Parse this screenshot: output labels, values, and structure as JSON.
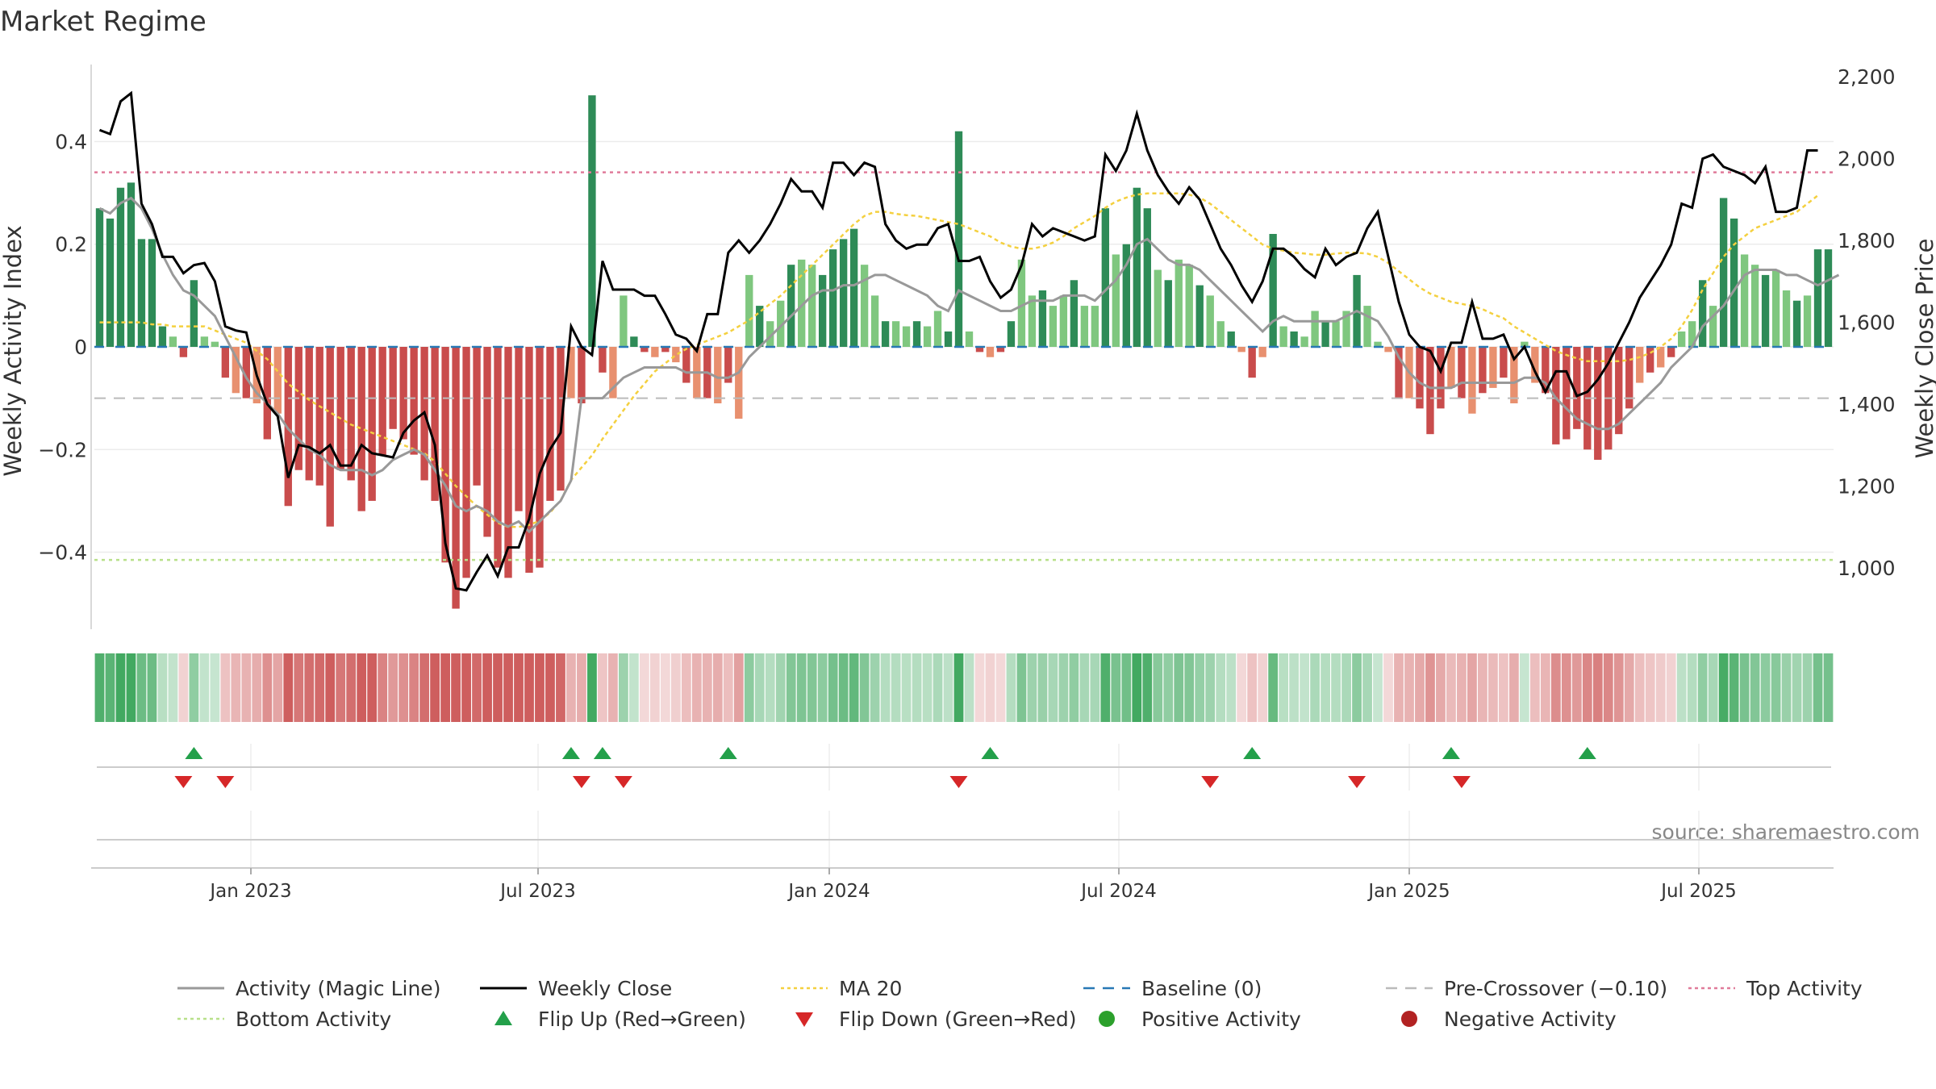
{
  "chart_data": {
    "type": "bar",
    "title": "Market Regime",
    "ylabel_left": "Weekly Activity Index",
    "ylabel_right": "Weekly Close Price",
    "source": "source: sharemaestro.com",
    "x_ticks": [
      "Jan 2023",
      "Jul 2023",
      "Jan 2024",
      "Jul 2024",
      "Jan 2025",
      "Jul 2025"
    ],
    "y_left_ticks": [
      "0.4",
      "0.2",
      "0",
      "−0.2",
      "−0.4"
    ],
    "y_right_ticks": [
      "2,200",
      "2,000",
      "1,800",
      "1,600",
      "1,400",
      "1,200",
      "1,000"
    ],
    "ylim_left": [
      -0.55,
      0.55
    ],
    "ylim_right": [
      850,
      2230
    ],
    "reference_lines": {
      "top_activity": 0.34,
      "bottom_activity": -0.415,
      "pre_crossover": -0.1,
      "baseline": 0
    },
    "activity_bars": [
      0.27,
      0.25,
      0.31,
      0.32,
      0.21,
      0.21,
      0.04,
      0.02,
      -0.02,
      0.13,
      0.02,
      0.01,
      -0.06,
      -0.09,
      -0.1,
      -0.11,
      -0.18,
      -0.13,
      -0.31,
      -0.24,
      -0.26,
      -0.27,
      -0.35,
      -0.24,
      -0.26,
      -0.32,
      -0.3,
      -0.21,
      -0.16,
      -0.18,
      -0.21,
      -0.26,
      -0.3,
      -0.42,
      -0.51,
      -0.45,
      -0.27,
      -0.37,
      -0.43,
      -0.45,
      -0.32,
      -0.44,
      -0.43,
      -0.3,
      -0.28,
      -0.1,
      -0.11,
      0.49,
      -0.05,
      -0.1,
      0.1,
      0.02,
      -0.01,
      -0.02,
      -0.01,
      -0.03,
      -0.07,
      -0.1,
      -0.1,
      -0.11,
      -0.07,
      -0.14,
      0.14,
      0.08,
      0.05,
      0.09,
      0.16,
      0.17,
      0.16,
      0.14,
      0.19,
      0.21,
      0.23,
      0.16,
      0.1,
      0.05,
      0.05,
      0.04,
      0.05,
      0.04,
      0.07,
      0.03,
      0.42,
      0.03,
      -0.01,
      -0.02,
      -0.01,
      0.05,
      0.17,
      0.1,
      0.11,
      0.08,
      0.1,
      0.13,
      0.08,
      0.08,
      0.27,
      0.18,
      0.2,
      0.31,
      0.27,
      0.15,
      0.13,
      0.17,
      0.16,
      0.12,
      0.1,
      0.05,
      0.03,
      -0.01,
      -0.06,
      -0.02,
      0.22,
      0.04,
      0.03,
      0.02,
      0.07,
      0.05,
      0.05,
      0.07,
      0.14,
      0.08,
      0.01,
      -0.01,
      -0.1,
      -0.1,
      -0.12,
      -0.17,
      -0.12,
      -0.08,
      -0.1,
      -0.13,
      -0.09,
      -0.08,
      -0.06,
      -0.11,
      0.01,
      -0.07,
      -0.09,
      -0.19,
      -0.18,
      -0.16,
      -0.2,
      -0.22,
      -0.2,
      -0.17,
      -0.12,
      -0.07,
      -0.05,
      -0.04,
      -0.02,
      0.03,
      0.05,
      0.13,
      0.08,
      0.29,
      0.25,
      0.18,
      0.16,
      0.14,
      0.15,
      0.11,
      0.09,
      0.1,
      0.19,
      0.19
    ],
    "magic_line": [
      0.27,
      0.26,
      0.28,
      0.29,
      0.27,
      0.23,
      0.18,
      0.14,
      0.11,
      0.1,
      0.08,
      0.06,
      0.02,
      -0.02,
      -0.06,
      -0.09,
      -0.11,
      -0.13,
      -0.16,
      -0.18,
      -0.2,
      -0.21,
      -0.23,
      -0.24,
      -0.24,
      -0.24,
      -0.25,
      -0.24,
      -0.22,
      -0.21,
      -0.2,
      -0.21,
      -0.24,
      -0.27,
      -0.31,
      -0.32,
      -0.31,
      -0.32,
      -0.34,
      -0.35,
      -0.34,
      -0.36,
      -0.34,
      -0.32,
      -0.3,
      -0.26,
      -0.1,
      -0.1,
      -0.1,
      -0.08,
      -0.06,
      -0.05,
      -0.04,
      -0.04,
      -0.04,
      -0.04,
      -0.05,
      -0.05,
      -0.05,
      -0.06,
      -0.06,
      -0.05,
      -0.02,
      0.0,
      0.02,
      0.04,
      0.06,
      0.08,
      0.1,
      0.11,
      0.11,
      0.12,
      0.12,
      0.13,
      0.14,
      0.14,
      0.13,
      0.12,
      0.11,
      0.1,
      0.08,
      0.07,
      0.11,
      0.1,
      0.09,
      0.08,
      0.07,
      0.07,
      0.08,
      0.09,
      0.09,
      0.09,
      0.1,
      0.1,
      0.1,
      0.09,
      0.11,
      0.13,
      0.16,
      0.2,
      0.21,
      0.19,
      0.17,
      0.16,
      0.16,
      0.15,
      0.13,
      0.11,
      0.09,
      0.07,
      0.05,
      0.03,
      0.05,
      0.06,
      0.05,
      0.05,
      0.05,
      0.05,
      0.05,
      0.06,
      0.07,
      0.06,
      0.05,
      0.02,
      -0.02,
      -0.05,
      -0.07,
      -0.08,
      -0.08,
      -0.08,
      -0.07,
      -0.07,
      -0.07,
      -0.07,
      -0.07,
      -0.07,
      -0.06,
      -0.06,
      -0.07,
      -0.1,
      -0.12,
      -0.14,
      -0.15,
      -0.16,
      -0.16,
      -0.15,
      -0.13,
      -0.11,
      -0.09,
      -0.07,
      -0.04,
      -0.02,
      0.0,
      0.04,
      0.06,
      0.08,
      0.11,
      0.14,
      0.15,
      0.15,
      0.15,
      0.14,
      0.14,
      0.13,
      0.12,
      0.13,
      0.14
    ],
    "weekly_close": [
      2070,
      2060,
      2140,
      2160,
      1890,
      1840,
      1760,
      1760,
      1720,
      1740,
      1745,
      1700,
      1590,
      1580,
      1575,
      1470,
      1400,
      1370,
      1220,
      1300,
      1295,
      1280,
      1300,
      1250,
      1250,
      1300,
      1280,
      1275,
      1270,
      1330,
      1360,
      1380,
      1300,
      1060,
      950,
      945,
      990,
      1030,
      980,
      1050,
      1050,
      1120,
      1230,
      1290,
      1330,
      1590,
      1540,
      1520,
      1750,
      1680,
      1680,
      1680,
      1665,
      1665,
      1620,
      1570,
      1560,
      1530,
      1620,
      1620,
      1770,
      1800,
      1770,
      1800,
      1840,
      1890,
      1950,
      1920,
      1920,
      1880,
      1990,
      1990,
      1960,
      1990,
      1980,
      1840,
      1800,
      1780,
      1790,
      1790,
      1830,
      1840,
      1750,
      1750,
      1760,
      1700,
      1660,
      1680,
      1740,
      1840,
      1810,
      1830,
      1820,
      1810,
      1800,
      1810,
      2010,
      1970,
      2020,
      2110,
      2020,
      1960,
      1920,
      1890,
      1930,
      1900,
      1840,
      1780,
      1740,
      1690,
      1650,
      1700,
      1780,
      1780,
      1760,
      1730,
      1710,
      1780,
      1740,
      1760,
      1770,
      1830,
      1870,
      1760,
      1650,
      1570,
      1540,
      1530,
      1480,
      1550,
      1550,
      1650,
      1560,
      1560,
      1570,
      1510,
      1540,
      1480,
      1430,
      1480,
      1480,
      1420,
      1430,
      1460,
      1500,
      1550,
      1600,
      1660,
      1700,
      1740,
      1790,
      1890,
      1880,
      2000,
      2010,
      1980,
      1970,
      1960,
      1940,
      1980,
      1870,
      1870,
      1880,
      2020,
      2020
    ],
    "ma20": [
      1600,
      1600,
      1600,
      1600,
      1600,
      1595,
      1595,
      1590,
      1590,
      1590,
      1590,
      1580,
      1570,
      1560,
      1550,
      1530,
      1510,
      1480,
      1450,
      1430,
      1410,
      1395,
      1380,
      1365,
      1350,
      1340,
      1330,
      1320,
      1310,
      1300,
      1290,
      1280,
      1260,
      1230,
      1200,
      1175,
      1150,
      1130,
      1110,
      1100,
      1100,
      1105,
      1115,
      1135,
      1165,
      1215,
      1245,
      1275,
      1315,
      1350,
      1385,
      1420,
      1450,
      1480,
      1500,
      1520,
      1535,
      1545,
      1555,
      1565,
      1575,
      1590,
      1605,
      1625,
      1645,
      1665,
      1690,
      1715,
      1740,
      1765,
      1790,
      1815,
      1840,
      1860,
      1870,
      1870,
      1865,
      1862,
      1860,
      1855,
      1850,
      1845,
      1840,
      1830,
      1820,
      1810,
      1795,
      1785,
      1780,
      1780,
      1785,
      1795,
      1810,
      1830,
      1845,
      1860,
      1880,
      1895,
      1905,
      1912,
      1915,
      1915,
      1915,
      1915,
      1912,
      1905,
      1890,
      1870,
      1850,
      1830,
      1810,
      1790,
      1780,
      1775,
      1770,
      1768,
      1765,
      1765,
      1768,
      1770,
      1770,
      1768,
      1760,
      1745,
      1725,
      1705,
      1685,
      1670,
      1660,
      1650,
      1645,
      1640,
      1632,
      1620,
      1610,
      1590,
      1575,
      1560,
      1545,
      1530,
      1520,
      1512,
      1505,
      1505,
      1505,
      1505,
      1508,
      1515,
      1525,
      1540,
      1560,
      1590,
      1630,
      1680,
      1720,
      1760,
      1790,
      1810,
      1830,
      1840,
      1850,
      1860,
      1870,
      1890,
      1910
    ],
    "flip_up_weeks": [
      9,
      45,
      48,
      60,
      85,
      110,
      129,
      142
    ],
    "flip_down_weeks": [
      8,
      12,
      46,
      50,
      82,
      106,
      120,
      130
    ],
    "colors": {
      "positive_strong": "#2e8b57",
      "positive_light": "#7fc77f",
      "negative_strong": "#c94c4c",
      "negative_light": "#e8906f",
      "magic_line": "#999999",
      "close_line": "#000000",
      "ma20": "#f4d03f",
      "top_activity": "#e07b9a",
      "bottom_activity": "#b8e08a",
      "pre_crossover": "#bbbbbb",
      "baseline": "#2878b5",
      "flip_up": "#23a04a",
      "flip_down": "#d62728",
      "positive_dot": "#2ca02c",
      "negative_dot": "#b22222"
    },
    "legend": [
      {
        "label": "Activity (Magic Line)",
        "kind": "line",
        "color": "#999999"
      },
      {
        "label": "Weekly Close",
        "kind": "line",
        "color": "#000000"
      },
      {
        "label": "MA 20",
        "kind": "dotted",
        "color": "#f4d03f"
      },
      {
        "label": "Baseline (0)",
        "kind": "dashed",
        "color": "#2878b5"
      },
      {
        "label": "Pre-Crossover (−0.10)",
        "kind": "dashed",
        "color": "#bbbbbb"
      },
      {
        "label": "Top Activity",
        "kind": "dotted",
        "color": "#e07b9a"
      },
      {
        "label": "Bottom Activity",
        "kind": "dotted",
        "color": "#b8e08a"
      },
      {
        "label": "Flip Up (Red→Green)",
        "kind": "tri-up",
        "color": "#23a04a"
      },
      {
        "label": "Flip Down (Green→Red)",
        "kind": "tri-down",
        "color": "#d62728"
      },
      {
        "label": "Positive Activity",
        "kind": "dot",
        "color": "#2ca02c"
      },
      {
        "label": "Negative Activity",
        "kind": "dot",
        "color": "#b22222"
      }
    ]
  }
}
